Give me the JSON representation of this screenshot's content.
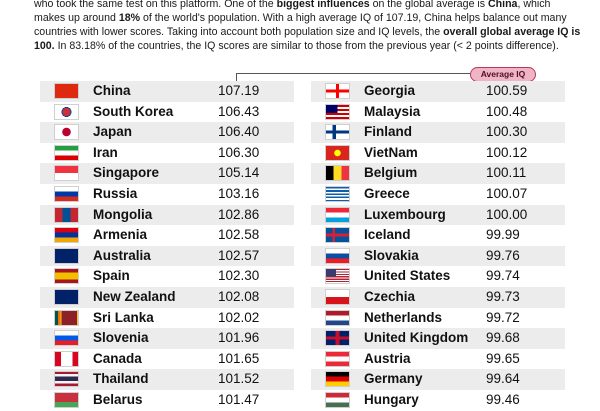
{
  "intro": {
    "s1_a": "who took the same test on this platform. One of the ",
    "s1_b": "biggest influences",
    "s1_c": " on the global average is ",
    "s1_d": "China",
    "s1_e": ", which makes up around ",
    "s1_f": "18%",
    "s1_g": " of the world's population. With a high average IQ of 107.19, China helps balance out many countries with lower scores. Taking into account both population size and IQ levels, the ",
    "s1_h": "overall global average IQ is 100.",
    "s1_i": " In 83.18% of the countries, the IQ scores are similar to those from the previous year (< 2 points difference)."
  },
  "badge": {
    "label": "Average IQ",
    "color": "#f1b4c4"
  },
  "left_column": [
    {
      "country": "China",
      "iq": "107.19",
      "flag": "flag-china-icon"
    },
    {
      "country": "South Korea",
      "iq": "106.43",
      "flag": "flag-south-korea-icon"
    },
    {
      "country": "Japan",
      "iq": "106.40",
      "flag": "flag-japan-icon"
    },
    {
      "country": "Iran",
      "iq": "106.30",
      "flag": "flag-iran-icon"
    },
    {
      "country": "Singapore",
      "iq": "105.14",
      "flag": "flag-singapore-icon"
    },
    {
      "country": "Russia",
      "iq": "103.16",
      "flag": "flag-russia-icon"
    },
    {
      "country": "Mongolia",
      "iq": "102.86",
      "flag": "flag-mongolia-icon"
    },
    {
      "country": "Armenia",
      "iq": "102.58",
      "flag": "flag-armenia-icon"
    },
    {
      "country": "Australia",
      "iq": "102.57",
      "flag": "flag-australia-icon"
    },
    {
      "country": "Spain",
      "iq": "102.30",
      "flag": "flag-spain-icon"
    },
    {
      "country": "New Zealand",
      "iq": "102.08",
      "flag": "flag-new-zealand-icon"
    },
    {
      "country": "Sri Lanka",
      "iq": "102.02",
      "flag": "flag-sri-lanka-icon"
    },
    {
      "country": "Slovenia",
      "iq": "101.96",
      "flag": "flag-slovenia-icon"
    },
    {
      "country": "Canada",
      "iq": "101.65",
      "flag": "flag-canada-icon"
    },
    {
      "country": "Thailand",
      "iq": "101.52",
      "flag": "flag-thailand-icon"
    },
    {
      "country": "Belarus",
      "iq": "101.47",
      "flag": "flag-belarus-icon"
    }
  ],
  "right_column": [
    {
      "country": "Georgia",
      "iq": "100.59",
      "flag": "flag-georgia-icon"
    },
    {
      "country": "Malaysia",
      "iq": "100.48",
      "flag": "flag-malaysia-icon"
    },
    {
      "country": "Finland",
      "iq": "100.30",
      "flag": "flag-finland-icon"
    },
    {
      "country": "VietNam",
      "iq": "100.12",
      "flag": "flag-vietnam-icon"
    },
    {
      "country": "Belgium",
      "iq": "100.11",
      "flag": "flag-belgium-icon"
    },
    {
      "country": "Greece",
      "iq": "100.07",
      "flag": "flag-greece-icon"
    },
    {
      "country": "Luxembourg",
      "iq": "100.00",
      "flag": "flag-luxembourg-icon"
    },
    {
      "country": "Iceland",
      "iq": "99.99",
      "flag": "flag-iceland-icon"
    },
    {
      "country": "Slovakia",
      "iq": "99.76",
      "flag": "flag-slovakia-icon"
    },
    {
      "country": "United States",
      "iq": "99.74",
      "flag": "flag-united-states-icon"
    },
    {
      "country": "Czechia",
      "iq": "99.73",
      "flag": "flag-czechia-icon"
    },
    {
      "country": "Netherlands",
      "iq": "99.72",
      "flag": "flag-netherlands-icon"
    },
    {
      "country": "United Kingdom",
      "iq": "99.68",
      "flag": "flag-united-kingdom-icon"
    },
    {
      "country": "Austria",
      "iq": "99.65",
      "flag": "flag-austria-icon"
    },
    {
      "country": "Germany",
      "iq": "99.64",
      "flag": "flag-germany-icon"
    },
    {
      "country": "Hungary",
      "iq": "99.46",
      "flag": "flag-hungary-icon"
    }
  ]
}
